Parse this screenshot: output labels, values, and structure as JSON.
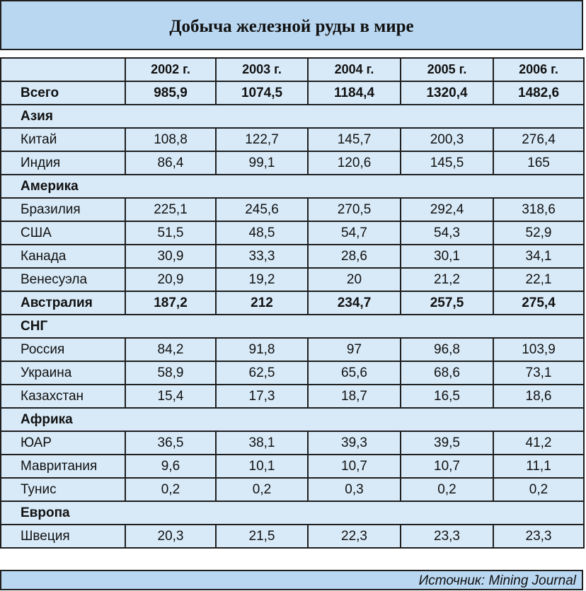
{
  "title": "Добыча железной руды в мире",
  "years": [
    "2002 г.",
    "2003 г.",
    "2004 г.",
    "2005 г.",
    "2006 г."
  ],
  "total": {
    "label": "Всего",
    "values": [
      "985,9",
      "1074,5",
      "1184,4",
      "1320,4",
      "1482,6"
    ]
  },
  "groups": [
    {
      "name": "Азия",
      "rows": [
        {
          "label": "Китай",
          "values": [
            "108,8",
            "122,7",
            "145,7",
            "200,3",
            "276,4"
          ]
        },
        {
          "label": "Индия",
          "values": [
            "86,4",
            "99,1",
            "120,6",
            "145,5",
            "165"
          ]
        }
      ]
    },
    {
      "name": "Америка",
      "rows": [
        {
          "label": "Бразилия",
          "values": [
            "225,1",
            "245,6",
            "270,5",
            "292,4",
            "318,6"
          ]
        },
        {
          "label": "США",
          "values": [
            "51,5",
            "48,5",
            "54,7",
            "54,3",
            "52,9"
          ]
        },
        {
          "label": "Канада",
          "values": [
            "30,9",
            "33,3",
            "28,6",
            "30,1",
            "34,1"
          ]
        },
        {
          "label": "Венесуэла",
          "values": [
            "20,9",
            "19,2",
            "20",
            "21,2",
            "22,1"
          ]
        }
      ]
    },
    {
      "name": "Австралия",
      "inline": true,
      "values": [
        "187,2",
        "212",
        "234,7",
        "257,5",
        "275,4"
      ],
      "rows": []
    },
    {
      "name": "СНГ",
      "rows": [
        {
          "label": "Россия",
          "values": [
            "84,2",
            "91,8",
            "97",
            "96,8",
            "103,9"
          ]
        },
        {
          "label": "Украина",
          "values": [
            "58,9",
            "62,5",
            "65,6",
            "68,6",
            "73,1"
          ]
        },
        {
          "label": "Казахстан",
          "values": [
            "15,4",
            "17,3",
            "18,7",
            "16,5",
            "18,6"
          ]
        }
      ]
    },
    {
      "name": "Африка",
      "rows": [
        {
          "label": "ЮАР",
          "values": [
            "36,5",
            "38,1",
            "39,3",
            "39,5",
            "41,2"
          ]
        },
        {
          "label": "Мавритания",
          "values": [
            "9,6",
            "10,1",
            "10,7",
            "10,7",
            "11,1"
          ]
        },
        {
          "label": "Тунис",
          "values": [
            "0,2",
            "0,2",
            "0,3",
            "0,2",
            "0,2"
          ]
        }
      ]
    },
    {
      "name": "Европа",
      "rows": [
        {
          "label": "Швеция",
          "values": [
            "20,3",
            "21,5",
            "22,3",
            "23,3",
            "23,3"
          ]
        }
      ]
    }
  ],
  "source": "Источник: Mining Journal"
}
